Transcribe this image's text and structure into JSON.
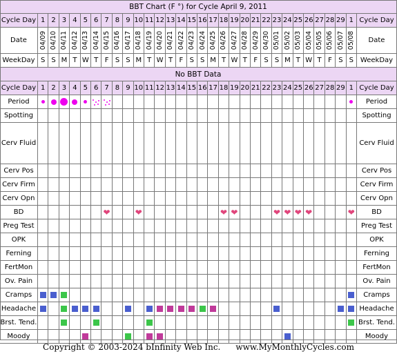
{
  "title": "BBT Chart (F °) for Cycle April 9, 2011",
  "no_bbt": "No BBT Data",
  "footer": {
    "copyright": "Copyright © 2003-2024 bInfinity Web Inc.",
    "site": "www.MyMonthlyCycles.com"
  },
  "colors": {
    "header_bg": "#ecd6f4",
    "period": "#ee00ee",
    "heart": "#e0457b",
    "blue": "#4a5fcf",
    "green": "#3cc64a",
    "magenta": "#c03a9a"
  },
  "chart_data": {
    "type": "table",
    "labels": {
      "cycle_day": "Cycle Day",
      "date": "Date",
      "weekday": "WeekDay"
    },
    "cycle_days": [
      "1",
      "2",
      "3",
      "4",
      "5",
      "6",
      "7",
      "8",
      "9",
      "10",
      "11",
      "12",
      "13",
      "14",
      "15",
      "16",
      "17",
      "18",
      "19",
      "20",
      "21",
      "22",
      "23",
      "24",
      "25",
      "26",
      "27",
      "28",
      "29",
      "1"
    ],
    "dates": [
      "04/09",
      "04/10",
      "04/11",
      "04/12",
      "04/13",
      "04/14",
      "04/15",
      "04/16",
      "04/17",
      "04/18",
      "04/19",
      "04/20",
      "04/21",
      "04/22",
      "04/23",
      "04/24",
      "04/25",
      "04/26",
      "04/27",
      "04/28",
      "04/29",
      "04/30",
      "05/01",
      "05/02",
      "05/03",
      "05/04",
      "05/05",
      "05/06",
      "05/07",
      "05/08"
    ],
    "weekdays": [
      "S",
      "S",
      "M",
      "T",
      "W",
      "T",
      "F",
      "S",
      "S",
      "M",
      "T",
      "W",
      "T",
      "F",
      "S",
      "S",
      "M",
      "T",
      "W",
      "T",
      "F",
      "S",
      "S",
      "M",
      "T",
      "W",
      "T",
      "F",
      "S",
      "S"
    ],
    "rows": [
      {
        "label": "Period",
        "marks": [
          {
            "d": 1,
            "t": "dot",
            "s": "s"
          },
          {
            "d": 2,
            "t": "dot",
            "s": "m"
          },
          {
            "d": 3,
            "t": "dot",
            "s": "l"
          },
          {
            "d": 4,
            "t": "dot",
            "s": "m"
          },
          {
            "d": 5,
            "t": "dot",
            "s": "s"
          },
          {
            "d": 6,
            "t": "spot"
          },
          {
            "d": 7,
            "t": "spot"
          },
          {
            "d": 30,
            "t": "dot",
            "s": "s"
          }
        ]
      },
      {
        "label": "Spotting",
        "marks": []
      },
      {
        "label": "Cerv Fluid",
        "marks": []
      },
      {
        "label": "Cerv Pos",
        "marks": []
      },
      {
        "label": "Cerv Firm",
        "marks": []
      },
      {
        "label": "Cerv Opn",
        "marks": []
      },
      {
        "label": "BD",
        "marks": [
          {
            "d": 7,
            "t": "heart"
          },
          {
            "d": 10,
            "t": "heart"
          },
          {
            "d": 18,
            "t": "heart"
          },
          {
            "d": 19,
            "t": "heart"
          },
          {
            "d": 23,
            "t": "heart"
          },
          {
            "d": 24,
            "t": "heart"
          },
          {
            "d": 25,
            "t": "heart"
          },
          {
            "d": 26,
            "t": "heart"
          },
          {
            "d": 30,
            "t": "heart"
          }
        ]
      },
      {
        "label": "Preg Test",
        "marks": []
      },
      {
        "label": "OPK",
        "marks": []
      },
      {
        "label": "Ferning",
        "marks": []
      },
      {
        "label": "FertMon",
        "marks": []
      },
      {
        "label": "Ov. Pain",
        "marks": []
      },
      {
        "label": "Cramps",
        "marks": [
          {
            "d": 1,
            "t": "blue"
          },
          {
            "d": 2,
            "t": "blue"
          },
          {
            "d": 3,
            "t": "green"
          },
          {
            "d": 30,
            "t": "blue"
          }
        ]
      },
      {
        "label": "Headache",
        "marks": [
          {
            "d": 1,
            "t": "blue"
          },
          {
            "d": 3,
            "t": "green"
          },
          {
            "d": 4,
            "t": "blue"
          },
          {
            "d": 5,
            "t": "blue"
          },
          {
            "d": 6,
            "t": "blue"
          },
          {
            "d": 9,
            "t": "blue"
          },
          {
            "d": 11,
            "t": "blue"
          },
          {
            "d": 12,
            "t": "magenta"
          },
          {
            "d": 13,
            "t": "magenta"
          },
          {
            "d": 14,
            "t": "magenta"
          },
          {
            "d": 15,
            "t": "magenta"
          },
          {
            "d": 16,
            "t": "green"
          },
          {
            "d": 17,
            "t": "magenta"
          },
          {
            "d": 23,
            "t": "blue"
          },
          {
            "d": 29,
            "t": "blue"
          },
          {
            "d": 30,
            "t": "blue"
          }
        ]
      },
      {
        "label": "Brst. Tend.",
        "marks": [
          {
            "d": 3,
            "t": "green"
          },
          {
            "d": 6,
            "t": "green"
          },
          {
            "d": 11,
            "t": "green"
          },
          {
            "d": 30,
            "t": "green"
          }
        ]
      },
      {
        "label": "Moody",
        "marks": [
          {
            "d": 5,
            "t": "magenta"
          },
          {
            "d": 9,
            "t": "green"
          },
          {
            "d": 11,
            "t": "magenta"
          },
          {
            "d": 12,
            "t": "magenta"
          },
          {
            "d": 24,
            "t": "blue"
          }
        ]
      }
    ]
  }
}
